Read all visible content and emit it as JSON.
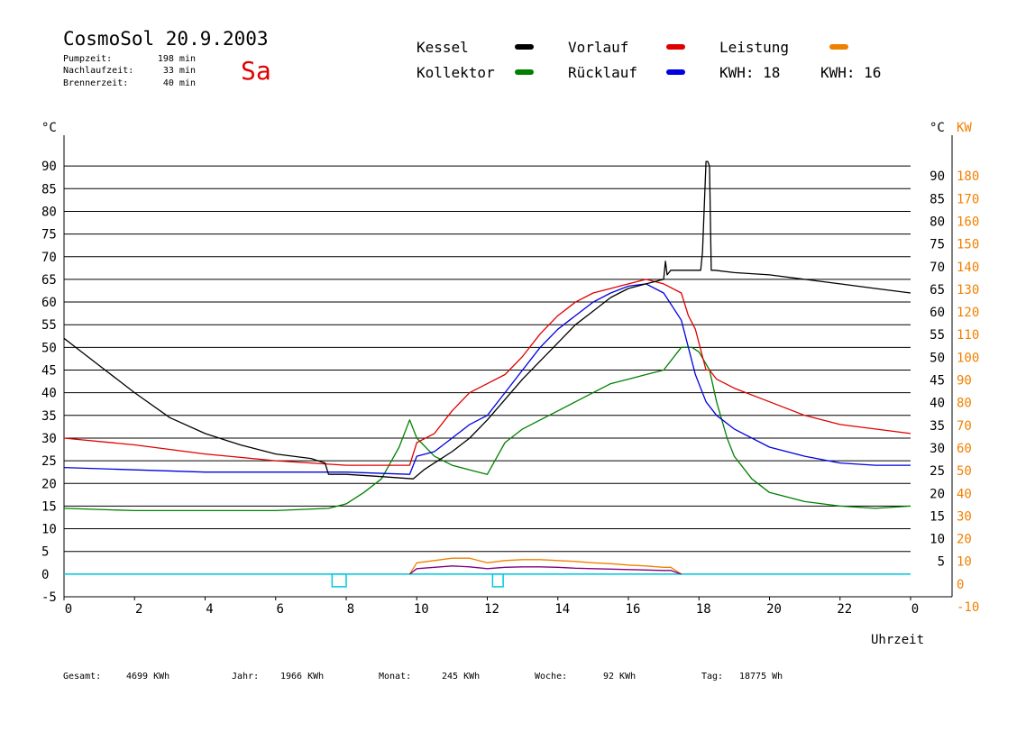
{
  "header": {
    "title": "CosmoSol 20.9.2003",
    "day": "Sa",
    "day_color": "#e00000",
    "stats": [
      {
        "label": "Pumpzeit:",
        "value": "198 min"
      },
      {
        "label": "Nachlaufzeit:",
        "value": "33 min"
      },
      {
        "label": "Brennerzeit:",
        "value": "40 min"
      }
    ]
  },
  "legend": {
    "items": [
      {
        "label": "Kessel",
        "color": "#000000"
      },
      {
        "label": "Vorlauf",
        "color": "#e00000"
      },
      {
        "label": "Leistung",
        "color": "#f08000"
      },
      {
        "label": "Kollektor",
        "color": "#008000"
      },
      {
        "label": "Rücklauf",
        "color": "#0000e0"
      }
    ],
    "kwh": [
      {
        "label": "KWH:",
        "value": "18",
        "color": "#f08000"
      },
      {
        "label": "KWH:",
        "value": "16",
        "color": "#800080"
      }
    ]
  },
  "footer": [
    {
      "label": "Gesamt:",
      "value": "4699 KWh"
    },
    {
      "label": "Jahr:",
      "value": "1966 KWh"
    },
    {
      "label": "Monat:",
      "value": "245 KWh"
    },
    {
      "label": "Woche:",
      "value": "92 KWh"
    },
    {
      "label": "Tag:",
      "value": "18775 Wh"
    }
  ],
  "chart_data": {
    "type": "line",
    "title": "CosmoSol 20.9.2003",
    "xlabel": "Uhrzeit",
    "xlim": [
      0,
      24
    ],
    "x_ticks": [
      "0",
      "2",
      "4",
      "6",
      "8",
      "10",
      "12",
      "14",
      "16",
      "18",
      "20",
      "22",
      "0"
    ],
    "ylabel_left": "°C",
    "ylabel_right_kw": "KW",
    "ylim": [
      -5,
      95
    ],
    "y_ticks_left": [
      "90",
      "85",
      "80",
      "75",
      "70",
      "65",
      "60",
      "55",
      "50",
      "45",
      "40",
      "35",
      "30",
      "25",
      "20",
      "15",
      "10",
      "5",
      "0",
      "-5"
    ],
    "y_ticks_right": [
      "90",
      "85",
      "80",
      "75",
      "70",
      "65",
      "60",
      "55",
      "50",
      "45",
      "40",
      "35",
      "30",
      "25",
      "20",
      "15",
      "10",
      "5"
    ],
    "y_ticks_kw": [
      "180",
      "170",
      "160",
      "150",
      "140",
      "130",
      "120",
      "110",
      "100",
      "90",
      "80",
      "70",
      "60",
      "50",
      "40",
      "30",
      "20",
      "10",
      "0",
      "-10"
    ],
    "grid": true,
    "colors": {
      "kessel": "#000000",
      "vorlauf": "#e00000",
      "kollektor": "#008000",
      "ruecklauf": "#0000e0",
      "leistung": "#f08000",
      "kwh2": "#800080",
      "pump": "#00c8e0"
    },
    "series": [
      {
        "name": "Kessel",
        "x": [
          0,
          1,
          2,
          3,
          4,
          5,
          6,
          7,
          7.4,
          7.5,
          8,
          9,
          9.9,
          10.2,
          10.5,
          11,
          11.5,
          12,
          12.5,
          13,
          13.5,
          14,
          14.5,
          15,
          15.5,
          16,
          16.5,
          17,
          17.05,
          17.1,
          17.2,
          17.8,
          18.05,
          18.1,
          18.2,
          18.25,
          18.3,
          18.35,
          18.45,
          19,
          20,
          21,
          22,
          23,
          24
        ],
        "y": [
          52,
          46,
          40,
          34.5,
          31,
          28.5,
          26.5,
          25.5,
          24.5,
          22,
          22,
          21.5,
          21,
          23,
          24.5,
          27,
          30,
          34,
          38.5,
          43,
          47,
          51,
          55,
          58,
          61,
          63,
          64,
          65,
          69,
          66,
          67,
          67,
          67,
          71,
          91,
          91,
          90,
          67,
          67,
          66.5,
          66,
          65,
          64,
          63,
          62
        ]
      },
      {
        "name": "Vorlauf",
        "x": [
          0,
          2,
          4,
          6,
          8,
          9.8,
          10,
          10.5,
          11,
          11.5,
          12,
          12.5,
          13,
          13.5,
          14,
          14.5,
          15,
          15.5,
          16,
          16.5,
          17,
          17.5,
          17.7,
          17.9,
          18.2,
          18.3,
          18.5,
          19,
          20,
          21,
          22,
          23,
          24
        ],
        "y": [
          30,
          28.5,
          26.5,
          25,
          24,
          24,
          29,
          31,
          36,
          40,
          42,
          44,
          48,
          53,
          57,
          60,
          62,
          63,
          64,
          65,
          64,
          62,
          57,
          54,
          45,
          45,
          43,
          41,
          38,
          35,
          33,
          32,
          31
        ]
      },
      {
        "name": "Kollektor",
        "x": [
          0,
          2,
          4,
          6,
          7.5,
          8,
          8.5,
          9,
          9.5,
          9.8,
          10,
          10.5,
          11,
          11.5,
          12,
          12.5,
          13,
          13.5,
          14,
          14.5,
          15,
          15.5,
          16,
          16.5,
          17,
          17.5,
          17.8,
          18,
          18.3,
          18.5,
          18.8,
          19,
          19.5,
          20,
          21,
          22,
          23,
          24
        ],
        "y": [
          14.5,
          14,
          14,
          14,
          14.5,
          15.5,
          18,
          21,
          28,
          34,
          30,
          26,
          24,
          23,
          22,
          29,
          32,
          34,
          36,
          38,
          40,
          42,
          43,
          44,
          45,
          50,
          50,
          49,
          45,
          38,
          30,
          26,
          21,
          18,
          16,
          15,
          14.5,
          15
        ]
      },
      {
        "name": "Rücklauf",
        "x": [
          0,
          2,
          4,
          6,
          8,
          9.8,
          10,
          10.5,
          11,
          11.5,
          12,
          12.5,
          13,
          13.5,
          14,
          14.5,
          15,
          15.5,
          16,
          16.5,
          17,
          17.5,
          17.7,
          17.9,
          18.2,
          18.5,
          19,
          20,
          21,
          22,
          23,
          24
        ],
        "y": [
          23.5,
          23,
          22.5,
          22.5,
          22.5,
          22,
          26,
          27,
          30,
          33,
          35,
          40,
          45,
          50,
          54,
          57,
          60,
          62,
          63.5,
          64,
          62,
          56,
          50,
          44,
          38,
          35,
          32,
          28,
          26,
          24.5,
          24,
          24
        ]
      },
      {
        "name": "Leistung",
        "x": [
          9.8,
          10,
          10.5,
          11,
          11.5,
          12,
          12.5,
          13,
          13.5,
          14,
          14.5,
          15,
          15.5,
          16,
          16.5,
          17,
          17.2,
          17.5
        ],
        "y": [
          0,
          2.5,
          3,
          3.5,
          3.5,
          2.5,
          3,
          3.2,
          3.2,
          3,
          2.8,
          2.5,
          2.3,
          2,
          1.8,
          1.5,
          1.5,
          0
        ]
      },
      {
        "name": "KWH",
        "x": [
          9.8,
          10,
          10.5,
          11,
          11.5,
          12,
          12.5,
          13,
          13.5,
          14,
          14.5,
          15,
          15.5,
          16,
          16.5,
          17,
          17.2,
          17.5
        ],
        "y": [
          0,
          1.2,
          1.5,
          1.8,
          1.6,
          1.2,
          1.5,
          1.6,
          1.6,
          1.5,
          1.3,
          1.2,
          1.1,
          1,
          0.9,
          0.8,
          0.8,
          0
        ]
      }
    ],
    "pump_markers": [
      {
        "x_start": 7.6,
        "x_end": 8.0
      },
      {
        "x_start": 12.15,
        "x_end": 12.45
      }
    ]
  }
}
